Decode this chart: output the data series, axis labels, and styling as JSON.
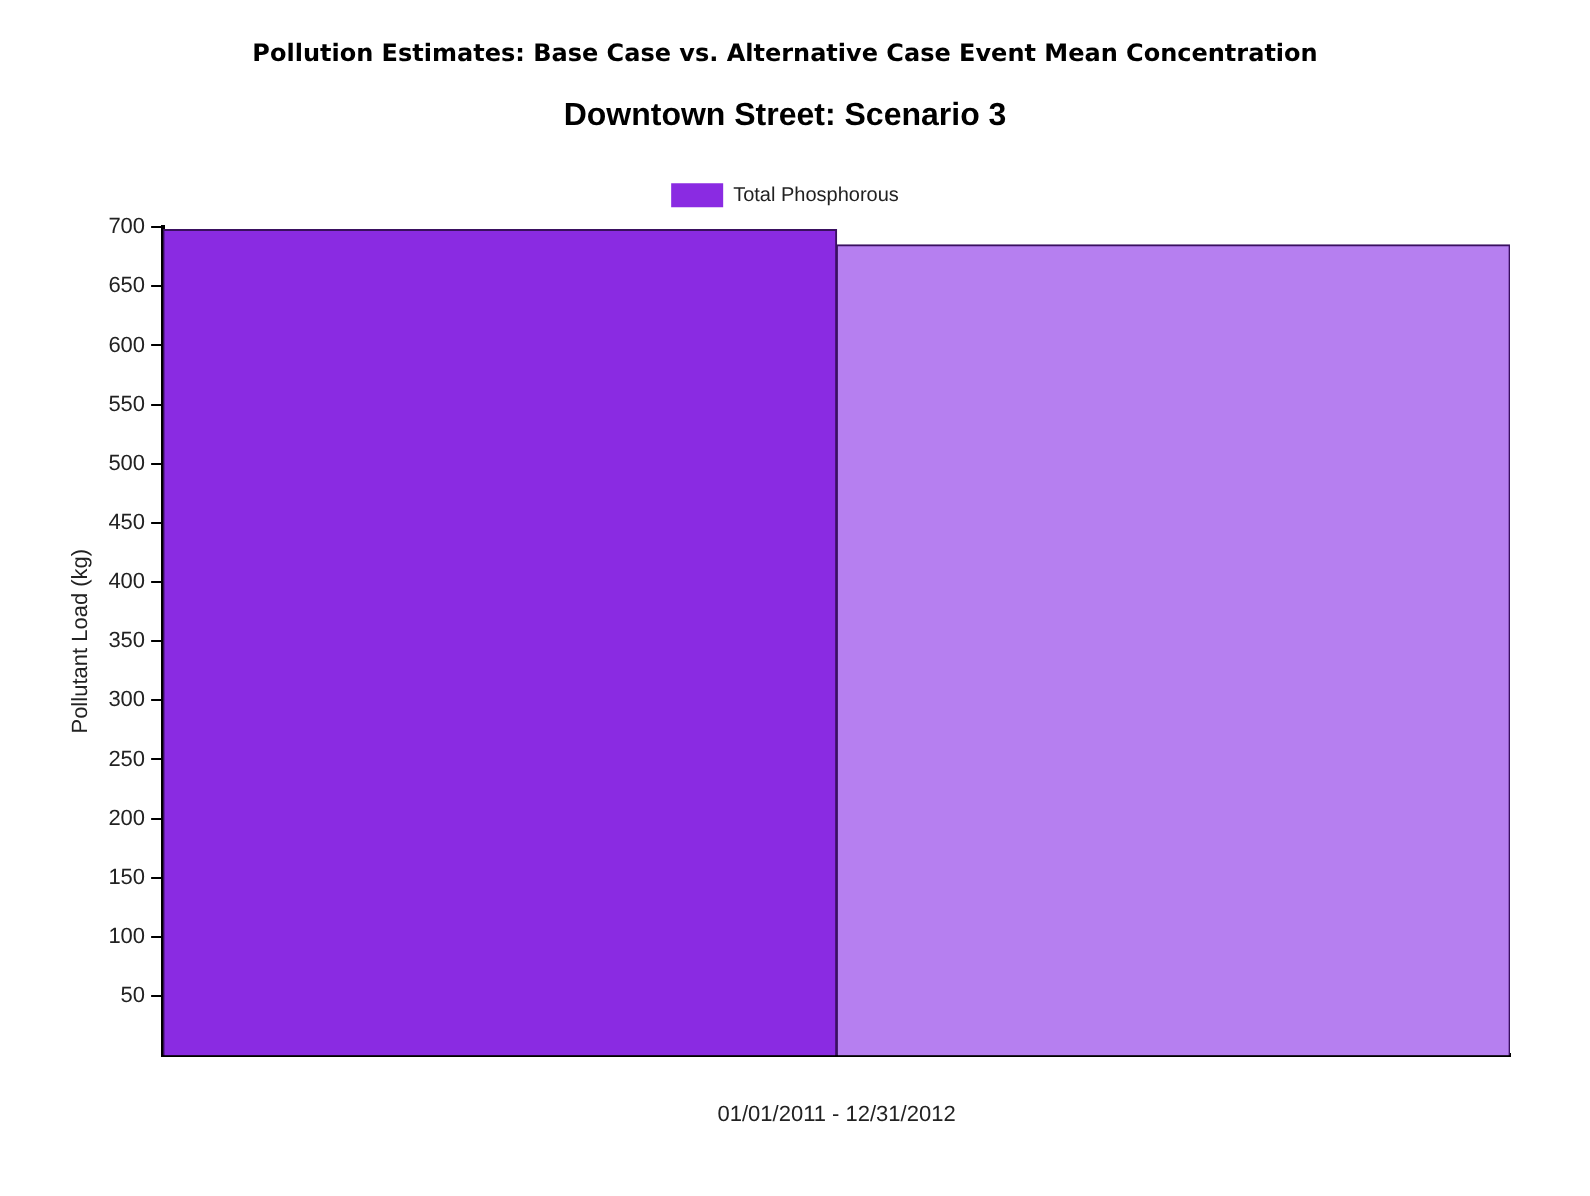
{
  "chart_data": {
    "type": "bar",
    "title": "Pollution Estimates: Base Case vs. Alternative Case Event Mean Concentration",
    "subtitle": "Downtown Street: Scenario 3",
    "xlabel": "01/01/2011 - 12/31/2012",
    "ylabel": "Pollutant Load (kg)",
    "categories": [
      null,
      null
    ],
    "series": [
      {
        "name": "Total Phosphorous",
        "color": "#8a2be2",
        "colors": [
          "#8a2be2",
          "#b67ff0"
        ],
        "values": [
          698,
          685
        ]
      }
    ],
    "ylim": [
      0,
      700
    ],
    "yticks": [
      50,
      100,
      150,
      200,
      250,
      300,
      350,
      400,
      450,
      500,
      550,
      600,
      650,
      700
    ],
    "grid": false,
    "legend": "top"
  }
}
